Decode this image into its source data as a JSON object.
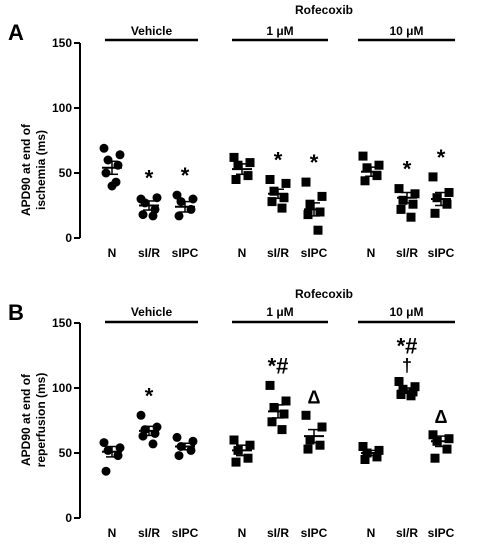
{
  "panels": [
    {
      "letter": "A",
      "ylabel_lines": [
        "APD90 at end of",
        "ischemia (ms)"
      ],
      "ylim": [
        0,
        150
      ],
      "yticks": [
        0,
        50,
        100,
        150
      ],
      "drug_label": "Rofecoxib",
      "group_labels": [
        "Vehicle",
        "1 μM",
        "10 μM"
      ],
      "category_labels": [
        "N",
        "sI/R",
        "sIPC"
      ],
      "annotations": [
        [
          "",
          "*",
          "*"
        ],
        [
          "",
          "*",
          "*"
        ],
        [
          "",
          "*",
          "*"
        ]
      ]
    },
    {
      "letter": "B",
      "ylabel_lines": [
        "APD90 at end of",
        "reperfusion (ms)"
      ],
      "ylim": [
        0,
        150
      ],
      "yticks": [
        0,
        50,
        100,
        150
      ],
      "drug_label": "Rofecoxib",
      "group_labels": [
        "Vehicle",
        "1 μM",
        "10 μM"
      ],
      "category_labels": [
        "N",
        "sI/R",
        "sIPC"
      ],
      "annotations": [
        [
          "",
          "*",
          ""
        ],
        [
          "",
          "*#",
          "Δ"
        ],
        [
          "",
          "*#\n†",
          "Δ"
        ]
      ]
    }
  ],
  "colors": {
    "ink": "#000000",
    "background": "#ffffff"
  },
  "chart_data": [
    {
      "type": "scatter",
      "title": "",
      "ylabel": "APD90 at end of ischemia (ms)",
      "ylim": [
        0,
        150
      ],
      "groups": [
        "Vehicle",
        "Rofecoxib 1 μM",
        "Rofecoxib 10 μM"
      ],
      "categories": [
        "N",
        "sI/R",
        "sIPC"
      ],
      "series": [
        {
          "group": "Vehicle",
          "marker": "circle",
          "points": {
            "N": [
              69,
              64,
              60,
              56,
              50,
              43,
              40
            ],
            "sI/R": [
              30,
              31,
              27,
              22,
              18,
              17
            ],
            "sIPC": [
              33,
              30,
              28,
              22,
              17
            ]
          },
          "mean": {
            "N": 54,
            "sI/R": 25,
            "sIPC": 24
          },
          "sem": {
            "N": 5,
            "sI/R": 3.5,
            "sIPC": 4
          }
        },
        {
          "group": "Rofecoxib 1 μM",
          "marker": "square",
          "points": {
            "N": [
              62,
              58,
              56,
              48,
              45
            ],
            "sI/R": [
              45,
              42,
              36,
              31,
              28,
              23
            ],
            "sIPC": [
              43,
              32,
              26,
              20,
              18,
              6
            ]
          },
          "mean": {
            "N": 53,
            "sI/R": 34,
            "sIPC": 22
          },
          "sem": {
            "N": 4,
            "sI/R": 3.5,
            "sIPC": 5
          }
        },
        {
          "group": "Rofecoxib 10 μM",
          "marker": "square",
          "points": {
            "N": [
              63,
              56,
              54,
              48,
              44
            ],
            "sI/R": [
              38,
              34,
              29,
              26,
              22,
              16
            ],
            "sIPC": [
              47,
              35,
              31,
              26,
              19
            ]
          },
          "mean": {
            "N": 51,
            "sI/R": 31,
            "sIPC": 30
          },
          "sem": {
            "N": 3.5,
            "sI/R": 4,
            "sIPC": 5
          }
        }
      ],
      "annotations": {
        "Vehicle": {
          "sI/R": "*",
          "sIPC": "*"
        },
        "Rofecoxib 1 μM": {
          "sI/R": "*",
          "sIPC": "*"
        },
        "Rofecoxib 10 μM": {
          "sI/R": "*",
          "sIPC": "*"
        }
      }
    },
    {
      "type": "scatter",
      "title": "",
      "ylabel": "APD90 at end of reperfusion (ms)",
      "ylim": [
        0,
        150
      ],
      "groups": [
        "Vehicle",
        "Rofecoxib 1 μM",
        "Rofecoxib 10 μM"
      ],
      "categories": [
        "N",
        "sI/R",
        "sIPC"
      ],
      "series": [
        {
          "group": "Vehicle",
          "marker": "circle",
          "points": {
            "N": [
              58,
              54,
              52,
              48,
              36
            ],
            "sI/R": [
              79,
              70,
              68,
              65,
              63,
              57
            ],
            "sIPC": [
              62,
              59,
              55,
              52,
              48
            ]
          },
          "mean": {
            "N": 51,
            "sI/R": 67,
            "sIPC": 55
          },
          "sem": {
            "N": 4,
            "sI/R": 3.5,
            "sIPC": 2.5
          }
        },
        {
          "group": "Rofecoxib 1 μM",
          "marker": "square",
          "points": {
            "N": [
              60,
              56,
              52,
              46,
              43
            ],
            "sI/R": [
              102,
              90,
              85,
              80,
              74,
              68
            ],
            "sIPC": [
              79,
              70,
              60,
              56,
              53
            ]
          },
          "mean": {
            "N": 52,
            "sI/R": 82,
            "sIPC": 63
          },
          "sem": {
            "N": 4,
            "sI/R": 5,
            "sIPC": 5
          }
        },
        {
          "group": "Rofecoxib 10 μM",
          "marker": "square",
          "points": {
            "N": [
              55,
              52,
              50,
              47,
              45
            ],
            "sI/R": [
              105,
              101,
              99,
              97,
              95,
              94
            ],
            "sIPC": [
              64,
              61,
              59,
              53,
              46
            ]
          },
          "mean": {
            "N": 50,
            "sI/R": 98,
            "sIPC": 59
          },
          "sem": {
            "N": 2,
            "sI/R": 2,
            "sIPC": 4
          }
        }
      ],
      "annotations": {
        "Vehicle": {
          "sI/R": "*"
        },
        "Rofecoxib 1 μM": {
          "sI/R": "*#",
          "sIPC": "Δ"
        },
        "Rofecoxib 10 μM": {
          "sI/R": "*# †",
          "sIPC": "Δ"
        }
      }
    }
  ]
}
